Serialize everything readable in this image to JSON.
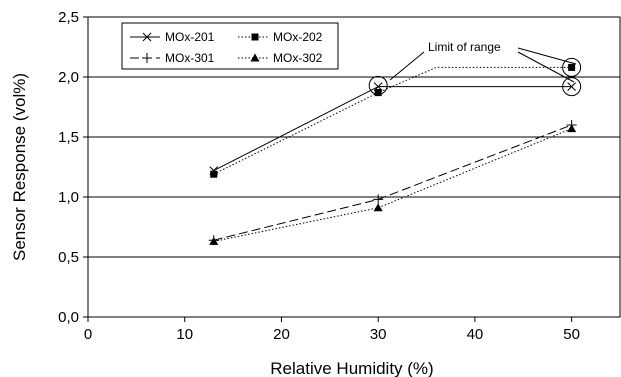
{
  "chart_data": {
    "type": "line",
    "title": "",
    "xlabel": "Relative Humidity (%)",
    "ylabel": "Sensor Response (vol%)",
    "xlim": [
      0,
      55
    ],
    "ylim": [
      0.0,
      2.5
    ],
    "xticks": [
      "0",
      "10",
      "20",
      "30",
      "40",
      "50"
    ],
    "yticks": [
      "0,0",
      "0,5",
      "1,0",
      "1,5",
      "2,0",
      "2,5"
    ],
    "grid": "horizontal",
    "legend_position": "top-left",
    "series": [
      {
        "name": "MOx-201",
        "marker": "x",
        "line_style": "solid",
        "points": [
          [
            13,
            1.22
          ],
          [
            30,
            1.92
          ],
          [
            50,
            1.92
          ]
        ],
        "path": [
          [
            13,
            1.22
          ],
          [
            30,
            1.92
          ],
          [
            50,
            1.92
          ]
        ]
      },
      {
        "name": "MOx-202",
        "marker": "square",
        "line_style": "dotted",
        "points": [
          [
            13,
            1.19
          ],
          [
            30,
            1.87
          ],
          [
            50,
            2.08
          ]
        ],
        "path": [
          [
            13,
            1.19
          ],
          [
            30,
            1.87
          ],
          [
            36,
            2.08
          ],
          [
            50,
            2.08
          ]
        ]
      },
      {
        "name": "MOx-301",
        "marker": "plus",
        "line_style": "dashed",
        "points": [
          [
            13,
            0.64
          ],
          [
            30,
            0.98
          ],
          [
            50,
            1.6
          ]
        ],
        "path": [
          [
            13,
            0.64
          ],
          [
            30,
            0.98
          ],
          [
            50,
            1.6
          ]
        ]
      },
      {
        "name": "MOx-302",
        "marker": "triangle",
        "line_style": "dotted",
        "points": [
          [
            13,
            0.63
          ],
          [
            30,
            0.91
          ],
          [
            50,
            1.57
          ]
        ],
        "path": [
          [
            13,
            0.63
          ],
          [
            30,
            0.91
          ],
          [
            50,
            1.57
          ]
        ]
      }
    ],
    "annotations": [
      {
        "text": "Limit of range",
        "circled_points": [
          [
            30,
            1.93
          ],
          [
            50,
            2.08
          ],
          [
            50,
            1.92
          ]
        ]
      }
    ]
  }
}
